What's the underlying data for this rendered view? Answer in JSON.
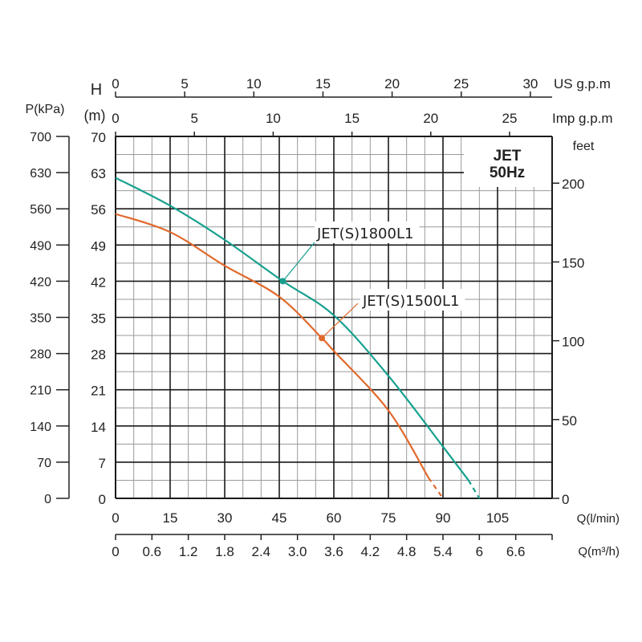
{
  "chart_data": {
    "type": "line",
    "title_box": [
      "JET",
      "50Hz"
    ],
    "colors": {
      "JET(S)1800L1": "#16a08f",
      "JET(S)1500L1": "#e0692b",
      "grid_major": "#1a1a1a",
      "grid_minor": "#9a9a9a"
    },
    "xlabel": "Q(l/min)",
    "xlim": [
      0,
      120
    ],
    "x_ticks": [
      0,
      15,
      30,
      45,
      60,
      75,
      90,
      105
    ],
    "x2_label": "Q(m³/h)",
    "x2_ticks": [
      "0",
      "0.6",
      "1.2",
      "1.8",
      "2.4",
      "3.0",
      "3.6",
      "4.2",
      "4.8",
      "5.4",
      "6",
      "6.6"
    ],
    "top_axis_us": {
      "label": "US g.p.m",
      "ticks": [
        0,
        5,
        10,
        15,
        20,
        25,
        30
      ]
    },
    "top_axis_imp": {
      "label": "Imp g.p.m",
      "ticks": [
        0,
        5,
        10,
        15,
        20,
        25
      ]
    },
    "ylabel_h": "H",
    "ylabel_m": "(m)",
    "ylim": [
      0,
      70
    ],
    "y_ticks": [
      0,
      7,
      14,
      21,
      28,
      35,
      42,
      49,
      56,
      63,
      70
    ],
    "y_kpa_label": "P(kPa)",
    "y_kpa_ticks": [
      0,
      70,
      140,
      210,
      280,
      350,
      420,
      490,
      560,
      630,
      700
    ],
    "y_feet_label": "feet",
    "y_feet_ticks": [
      0,
      50,
      100,
      150,
      200
    ],
    "series": [
      {
        "name": "JET(S)1800L1",
        "x": [
          0,
          15,
          30,
          46,
          60,
          75,
          90,
          97
        ],
        "y": [
          62,
          56.6,
          50,
          42,
          35.4,
          23.7,
          10,
          3.5
        ],
        "dashed_to": [
          100,
          0
        ],
        "marker": [
          46,
          42
        ]
      },
      {
        "name": "JET(S)1500L1",
        "x": [
          0,
          15,
          30,
          45,
          56.7,
          60,
          75,
          86
        ],
        "y": [
          55,
          51.5,
          45,
          39,
          31,
          28.5,
          17,
          4
        ],
        "dashed_to": [
          90,
          0
        ],
        "marker": [
          56.7,
          31
        ]
      }
    ]
  }
}
